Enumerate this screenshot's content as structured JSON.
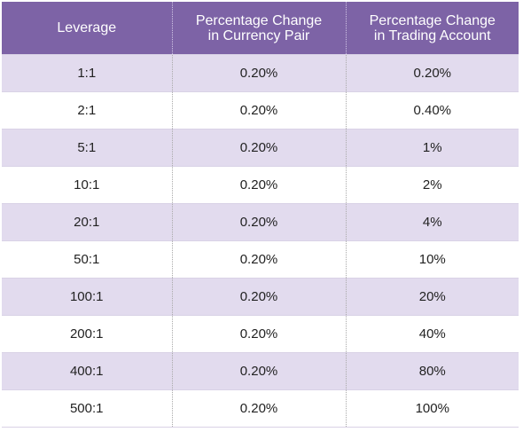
{
  "table": {
    "headers": [
      {
        "line1": "Leverage",
        "line2": ""
      },
      {
        "line1": "Percentage Change",
        "line2": "in Currency Pair"
      },
      {
        "line1": "Percentage Change",
        "line2": "in Trading Account"
      }
    ],
    "rows": [
      {
        "leverage": "1:1",
        "currency_pair": "0.20%",
        "trading_account": "0.20%"
      },
      {
        "leverage": "2:1",
        "currency_pair": "0.20%",
        "trading_account": "0.40%"
      },
      {
        "leverage": "5:1",
        "currency_pair": "0.20%",
        "trading_account": "1%"
      },
      {
        "leverage": "10:1",
        "currency_pair": "0.20%",
        "trading_account": "2%"
      },
      {
        "leverage": "20:1",
        "currency_pair": "0.20%",
        "trading_account": "4%"
      },
      {
        "leverage": "50:1",
        "currency_pair": "0.20%",
        "trading_account": "10%"
      },
      {
        "leverage": "100:1",
        "currency_pair": "0.20%",
        "trading_account": "20%"
      },
      {
        "leverage": "200:1",
        "currency_pair": "0.20%",
        "trading_account": "40%"
      },
      {
        "leverage": "400:1",
        "currency_pair": "0.20%",
        "trading_account": "80%"
      },
      {
        "leverage": "500:1",
        "currency_pair": "0.20%",
        "trading_account": "100%"
      }
    ]
  },
  "colors": {
    "header_bg": "#7d63a6",
    "header_text": "#ffffff",
    "row_stripe": "#e2dbee",
    "row_plain": "#ffffff"
  }
}
